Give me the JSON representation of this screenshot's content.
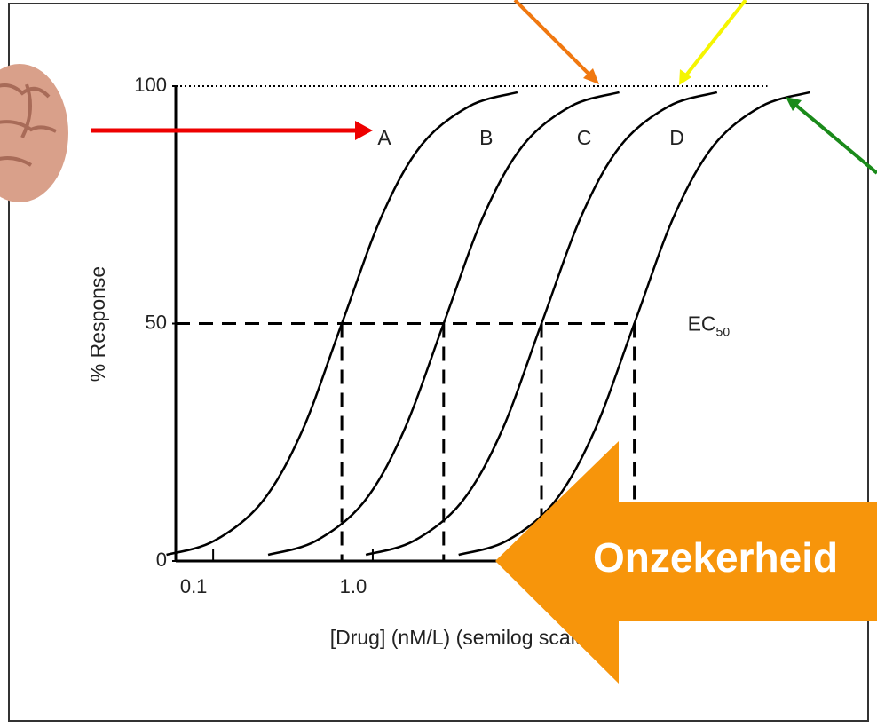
{
  "chart_data": {
    "type": "line",
    "xlabel": "[Drug] (nM/L) (semilog scale)",
    "ylabel": "% Response",
    "xscale": "log",
    "xlim": [
      0.05,
      800
    ],
    "xticks": [
      0.1,
      {
        "value": 1,
        "label": "1.0"
      }
    ],
    "ylim": [
      0,
      100
    ],
    "yticks": [
      0,
      50,
      100
    ],
    "grid": false,
    "color": "#000000",
    "series": [
      {
        "name": "A",
        "x": [
          0.051,
          0.101,
          0.202,
          0.36,
          0.64,
          1.14,
          2.02,
          4.04,
          8.06
        ],
        "values": [
          1.3,
          4.2,
          12.4,
          27.3,
          50,
          72.7,
          87.6,
          95.8,
          98.7
        ]
      },
      {
        "name": "B",
        "x": [
          0.221,
          0.439,
          0.878,
          1.56,
          2.78,
          4.94,
          8.78,
          17.5,
          35
        ],
        "values": [
          1.3,
          4.2,
          12.4,
          27.3,
          50,
          72.7,
          87.6,
          95.8,
          98.7
        ]
      },
      {
        "name": "C",
        "x": [
          0.905,
          1.8,
          3.6,
          6.41,
          11.4,
          20.3,
          36,
          71.9,
          143.5
        ],
        "values": [
          1.3,
          4.2,
          12.4,
          27.3,
          50,
          72.7,
          87.6,
          95.8,
          98.7
        ]
      },
      {
        "name": "D",
        "x": [
          3.45,
          6.87,
          13.7,
          24.4,
          43.5,
          77.3,
          137.5,
          274,
          548
        ],
        "values": [
          1.3,
          4.2,
          12.4,
          27.3,
          50,
          72.7,
          87.6,
          95.8,
          98.7
        ]
      }
    ],
    "ec50_label": {
      "main": "EC",
      "sub": "50"
    },
    "overlay_text": "Onzekerheid"
  }
}
